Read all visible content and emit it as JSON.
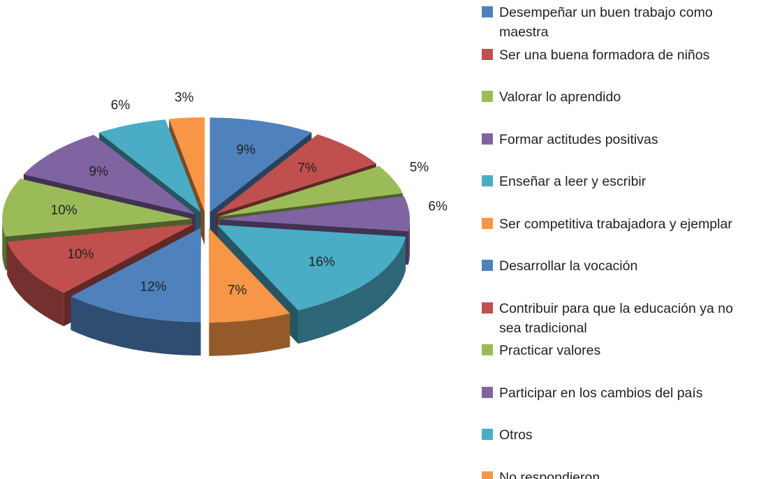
{
  "chart_data": {
    "type": "pie",
    "categories": [
      "Desempeñar un buen trabajo como maestra",
      "Ser una buena formadora de niños",
      "Valorar lo aprendido",
      "Formar actitudes positivas",
      "Enseñar  a leer y escribir",
      "Ser competitiva trabajadora y ejemplar",
      "Desarrollar la vocación",
      "Contribuir para que la educación ya no sea tradicional",
      "Practicar valores",
      "Participar en los cambios del país",
      "Otros",
      "No respondieron"
    ],
    "values": [
      9,
      7,
      5,
      6,
      16,
      7,
      12,
      10,
      10,
      9,
      6,
      3
    ],
    "value_labels": [
      "9%",
      "7%",
      "5%",
      "6%",
      "16%",
      "7%",
      "12%",
      "10%",
      "10%",
      "9%",
      "6%",
      "3%"
    ],
    "colors": [
      "#4f81bd",
      "#c0504d",
      "#9bbb59",
      "#8064a2",
      "#4bacc6",
      "#f79646",
      "#4f81bd",
      "#c0504d",
      "#9bbb59",
      "#8064a2",
      "#4bacc6",
      "#f79646"
    ],
    "legend": "right"
  }
}
